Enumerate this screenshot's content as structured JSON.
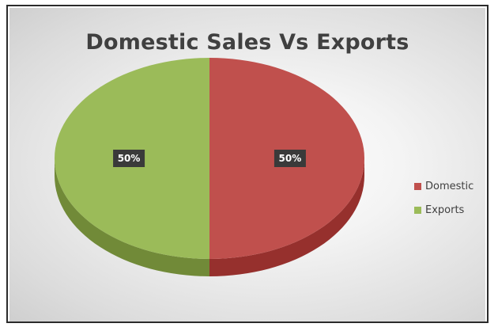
{
  "chart_data": {
    "type": "pie",
    "title": "Domestic Sales Vs Exports",
    "categories": [
      "Domestic",
      "Exports"
    ],
    "values": [
      50,
      50
    ],
    "data_labels": [
      "50%",
      "50%"
    ],
    "colors": [
      "#c0504d",
      "#9bbb59"
    ],
    "side_colors": [
      "#96302d",
      "#718a38"
    ],
    "legend_position": "right",
    "three_d": true
  }
}
